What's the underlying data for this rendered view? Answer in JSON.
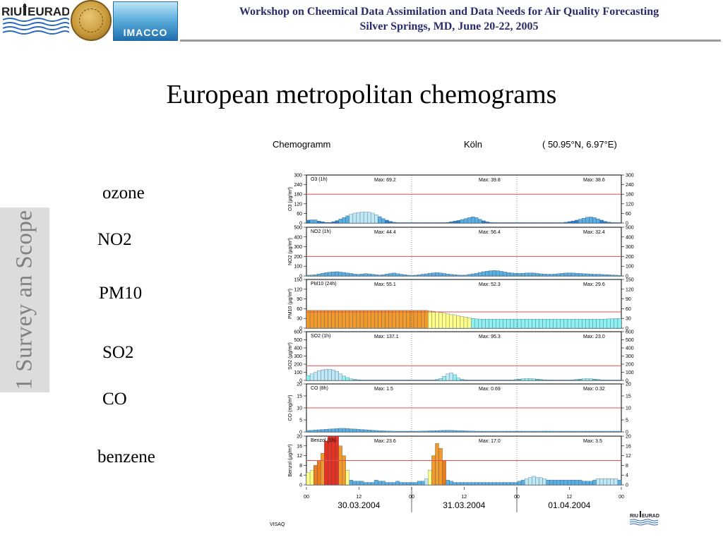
{
  "header": {
    "line1": "Workshop on Cheemical Data Assimilation and Data Needs for Air Quality Forecasting",
    "line2": "Silver Springs, MD, June 20-22, 2005",
    "logo_left": "RIU EURAD",
    "logo_mid": "IMACCO"
  },
  "title": "European metropolitan chemograms",
  "side_text": "1 Survey an Scope",
  "labels": [
    "ozone",
    "NO2",
    "PM10",
    "SO2",
    "CO",
    "benzene"
  ],
  "chart_header": {
    "left": "Chemogramm",
    "city": "Köln",
    "coords": "( 50.95°N,  6.97°E)"
  },
  "footer": {
    "left": "VISAQ",
    "logo": "RIU EURAD"
  },
  "colors": {
    "ref_line": "#e05050",
    "dark_blue": "#2f7fc6",
    "mid_blue": "#5aaee0",
    "light_blue": "#bfe8f5",
    "cyan": "#8ff0f0",
    "yellow": "#ffff88",
    "orange": "#f39a2c",
    "dark_orange": "#ea7a1c",
    "red": "#e63222"
  },
  "chart_data": {
    "type": "bar",
    "x_ticks": [
      "00",
      "12",
      "00",
      "12",
      "00",
      "12",
      "00"
    ],
    "dates": [
      "30.03.2004",
      "31.03.2004",
      "01.04.2004"
    ],
    "panels": [
      {
        "name": "O3 (1h)",
        "ylabel": "O3 (µg/m³)",
        "yticks": [
          0,
          60,
          120,
          180,
          240,
          300
        ],
        "ymax": 300,
        "ref": 180,
        "max": [
          "Max: 69.2",
          "Max: 39.8",
          "Max: 38.6"
        ],
        "values": [
          18,
          20,
          20,
          12,
          8,
          4,
          3,
          8,
          15,
          25,
          35,
          45,
          55,
          62,
          66,
          68,
          69,
          67,
          62,
          52,
          40,
          28,
          18,
          10,
          5,
          2,
          1,
          1,
          1,
          1,
          1,
          1,
          1,
          1,
          1,
          1,
          1,
          1,
          1,
          4,
          8,
          12,
          16,
          22,
          28,
          34,
          39,
          34,
          24,
          14,
          8,
          4,
          2,
          1,
          1,
          1,
          1,
          1,
          1,
          1,
          1,
          1,
          1,
          1,
          1,
          1,
          1,
          1,
          1,
          1,
          1,
          2,
          5,
          9,
          13,
          18,
          24,
          30,
          36,
          38,
          34,
          26,
          18,
          10,
          6,
          3,
          2,
          1
        ]
      },
      {
        "name": "NO2 (1h)",
        "ylabel": "NO2 (µg/m³)",
        "yticks": [
          0,
          100,
          200,
          300,
          400,
          500
        ],
        "ymax": 500,
        "ref": 200,
        "max": [
          "Max: 44.4",
          "Max: 56.4",
          "Max: 32.4"
        ],
        "values": [
          8,
          10,
          14,
          20,
          28,
          34,
          38,
          42,
          44,
          40,
          36,
          30,
          26,
          20,
          16,
          20,
          24,
          22,
          18,
          14,
          10,
          14,
          20,
          26,
          30,
          24,
          18,
          12,
          8,
          6,
          8,
          12,
          18,
          22,
          28,
          32,
          34,
          30,
          26,
          20,
          16,
          12,
          10,
          8,
          10,
          16,
          22,
          28,
          36,
          44,
          50,
          54,
          56,
          54,
          48,
          40,
          34,
          30,
          28,
          26,
          28,
          30,
          32,
          30,
          26,
          22,
          20,
          18,
          18,
          20,
          24,
          28,
          30,
          32,
          30,
          28,
          26,
          24,
          22,
          20,
          18,
          18,
          16,
          14,
          12,
          10,
          8,
          6
        ]
      },
      {
        "name": "PM10 (24h)",
        "ylabel": "PM10 (µg/m³)",
        "yticks": [
          0,
          30,
          60,
          90,
          120,
          150
        ],
        "ymax": 150,
        "ref": 50,
        "max": [
          "Max: 55.1",
          "Max: 52.3",
          "Max: 29.6"
        ],
        "values": [
          55,
          55,
          55,
          55,
          55,
          55,
          55,
          55,
          55,
          55,
          55,
          55,
          55,
          55,
          55,
          55,
          55,
          55,
          55,
          55,
          55,
          55,
          55,
          55,
          55,
          55,
          55,
          55,
          55,
          55,
          55,
          55,
          55,
          55,
          54,
          52,
          50,
          48,
          46,
          44,
          42,
          40,
          38,
          36,
          34,
          32,
          30,
          29,
          28,
          28,
          28,
          28,
          28,
          28,
          28,
          28,
          28,
          28,
          28,
          28,
          28,
          28,
          28,
          28,
          28,
          28,
          28,
          28,
          28,
          28,
          28,
          28,
          28,
          28,
          28,
          28,
          28,
          28,
          28,
          28,
          28,
          28,
          28,
          28,
          29,
          29,
          30,
          30
        ]
      },
      {
        "name": "SO2 (1h)",
        "ylabel": "SO2 (µg/m³)",
        "yticks": [
          0,
          100,
          200,
          300,
          400,
          500,
          600
        ],
        "ymax": 600,
        "ref": 180,
        "max": [
          "Max: 137.1",
          "Max: 95.3",
          "Max: 23.0"
        ],
        "values": [
          60,
          80,
          100,
          120,
          130,
          135,
          137,
          130,
          110,
          80,
          55,
          35,
          20,
          12,
          8,
          5,
          4,
          3,
          3,
          3,
          3,
          3,
          3,
          3,
          3,
          3,
          3,
          3,
          3,
          3,
          3,
          3,
          3,
          3,
          3,
          5,
          10,
          25,
          50,
          80,
          95,
          70,
          30,
          12,
          6,
          4,
          3,
          3,
          3,
          3,
          3,
          3,
          3,
          3,
          3,
          3,
          3,
          5,
          10,
          16,
          20,
          22,
          23,
          20,
          16,
          12,
          8,
          6,
          5,
          4,
          3,
          3,
          3,
          5,
          8,
          12,
          16,
          20,
          22,
          20,
          16,
          12,
          8,
          6,
          4,
          3,
          3,
          3
        ]
      },
      {
        "name": "CO (8h)",
        "ylabel": "CO (mg/m³)",
        "yticks": [
          0,
          5,
          10,
          15,
          20
        ],
        "ymax": 20,
        "ref": 10,
        "max": [
          "Max: 1.5",
          "Max: 0.69",
          "Max: 0.32"
        ],
        "values": [
          0.6,
          0.7,
          0.8,
          0.9,
          1.0,
          1.1,
          1.2,
          1.3,
          1.4,
          1.5,
          1.5,
          1.4,
          1.3,
          1.2,
          1.1,
          1.0,
          0.9,
          0.8,
          0.7,
          0.6,
          0.5,
          0.45,
          0.4,
          0.35,
          0.3,
          0.3,
          0.3,
          0.3,
          0.3,
          0.3,
          0.3,
          0.3,
          0.35,
          0.4,
          0.45,
          0.5,
          0.55,
          0.6,
          0.65,
          0.69,
          0.65,
          0.6,
          0.55,
          0.5,
          0.45,
          0.4,
          0.35,
          0.3,
          0.3,
          0.3,
          0.3,
          0.3,
          0.3,
          0.3,
          0.3,
          0.3,
          0.3,
          0.3,
          0.3,
          0.3,
          0.3,
          0.3,
          0.3,
          0.3,
          0.3,
          0.3,
          0.32,
          0.32,
          0.3,
          0.3,
          0.3,
          0.3,
          0.3,
          0.3,
          0.3,
          0.3,
          0.3,
          0.3,
          0.3,
          0.3,
          0.3,
          0.3,
          0.3,
          0.3,
          0.3,
          0.3,
          0.3,
          0.3
        ]
      },
      {
        "name": "Benzol (1h)",
        "ylabel": "Benzol (µg/m³)",
        "yticks": [
          0,
          4,
          8,
          12,
          16,
          20
        ],
        "ymax": 20,
        "ref": 10,
        "max": [
          "Max: 23.6",
          "Max: 17.0",
          "Max: 3.5"
        ],
        "values": [
          5,
          6,
          8,
          10,
          13,
          18,
          20,
          20,
          20,
          16,
          12,
          6,
          2,
          1.5,
          1.5,
          1.5,
          1,
          1,
          1,
          2,
          1.5,
          1.5,
          1,
          1,
          1,
          1.5,
          1,
          1,
          1,
          1,
          1,
          1.5,
          1.5,
          2.5,
          6,
          12,
          17,
          15,
          10,
          2,
          1.5,
          1,
          1,
          1,
          1,
          1,
          1,
          1,
          1,
          1,
          1,
          1,
          1,
          1,
          1,
          1,
          1,
          1,
          1,
          1.5,
          2,
          2.5,
          3,
          3.5,
          3,
          3,
          2.5,
          2,
          2,
          2,
          2,
          2,
          2,
          2,
          2,
          2,
          2,
          1.5,
          1.5,
          1.5,
          2,
          2.5,
          2.5,
          2.5,
          2.5,
          2.5,
          2.5,
          2
        ]
      }
    ]
  }
}
